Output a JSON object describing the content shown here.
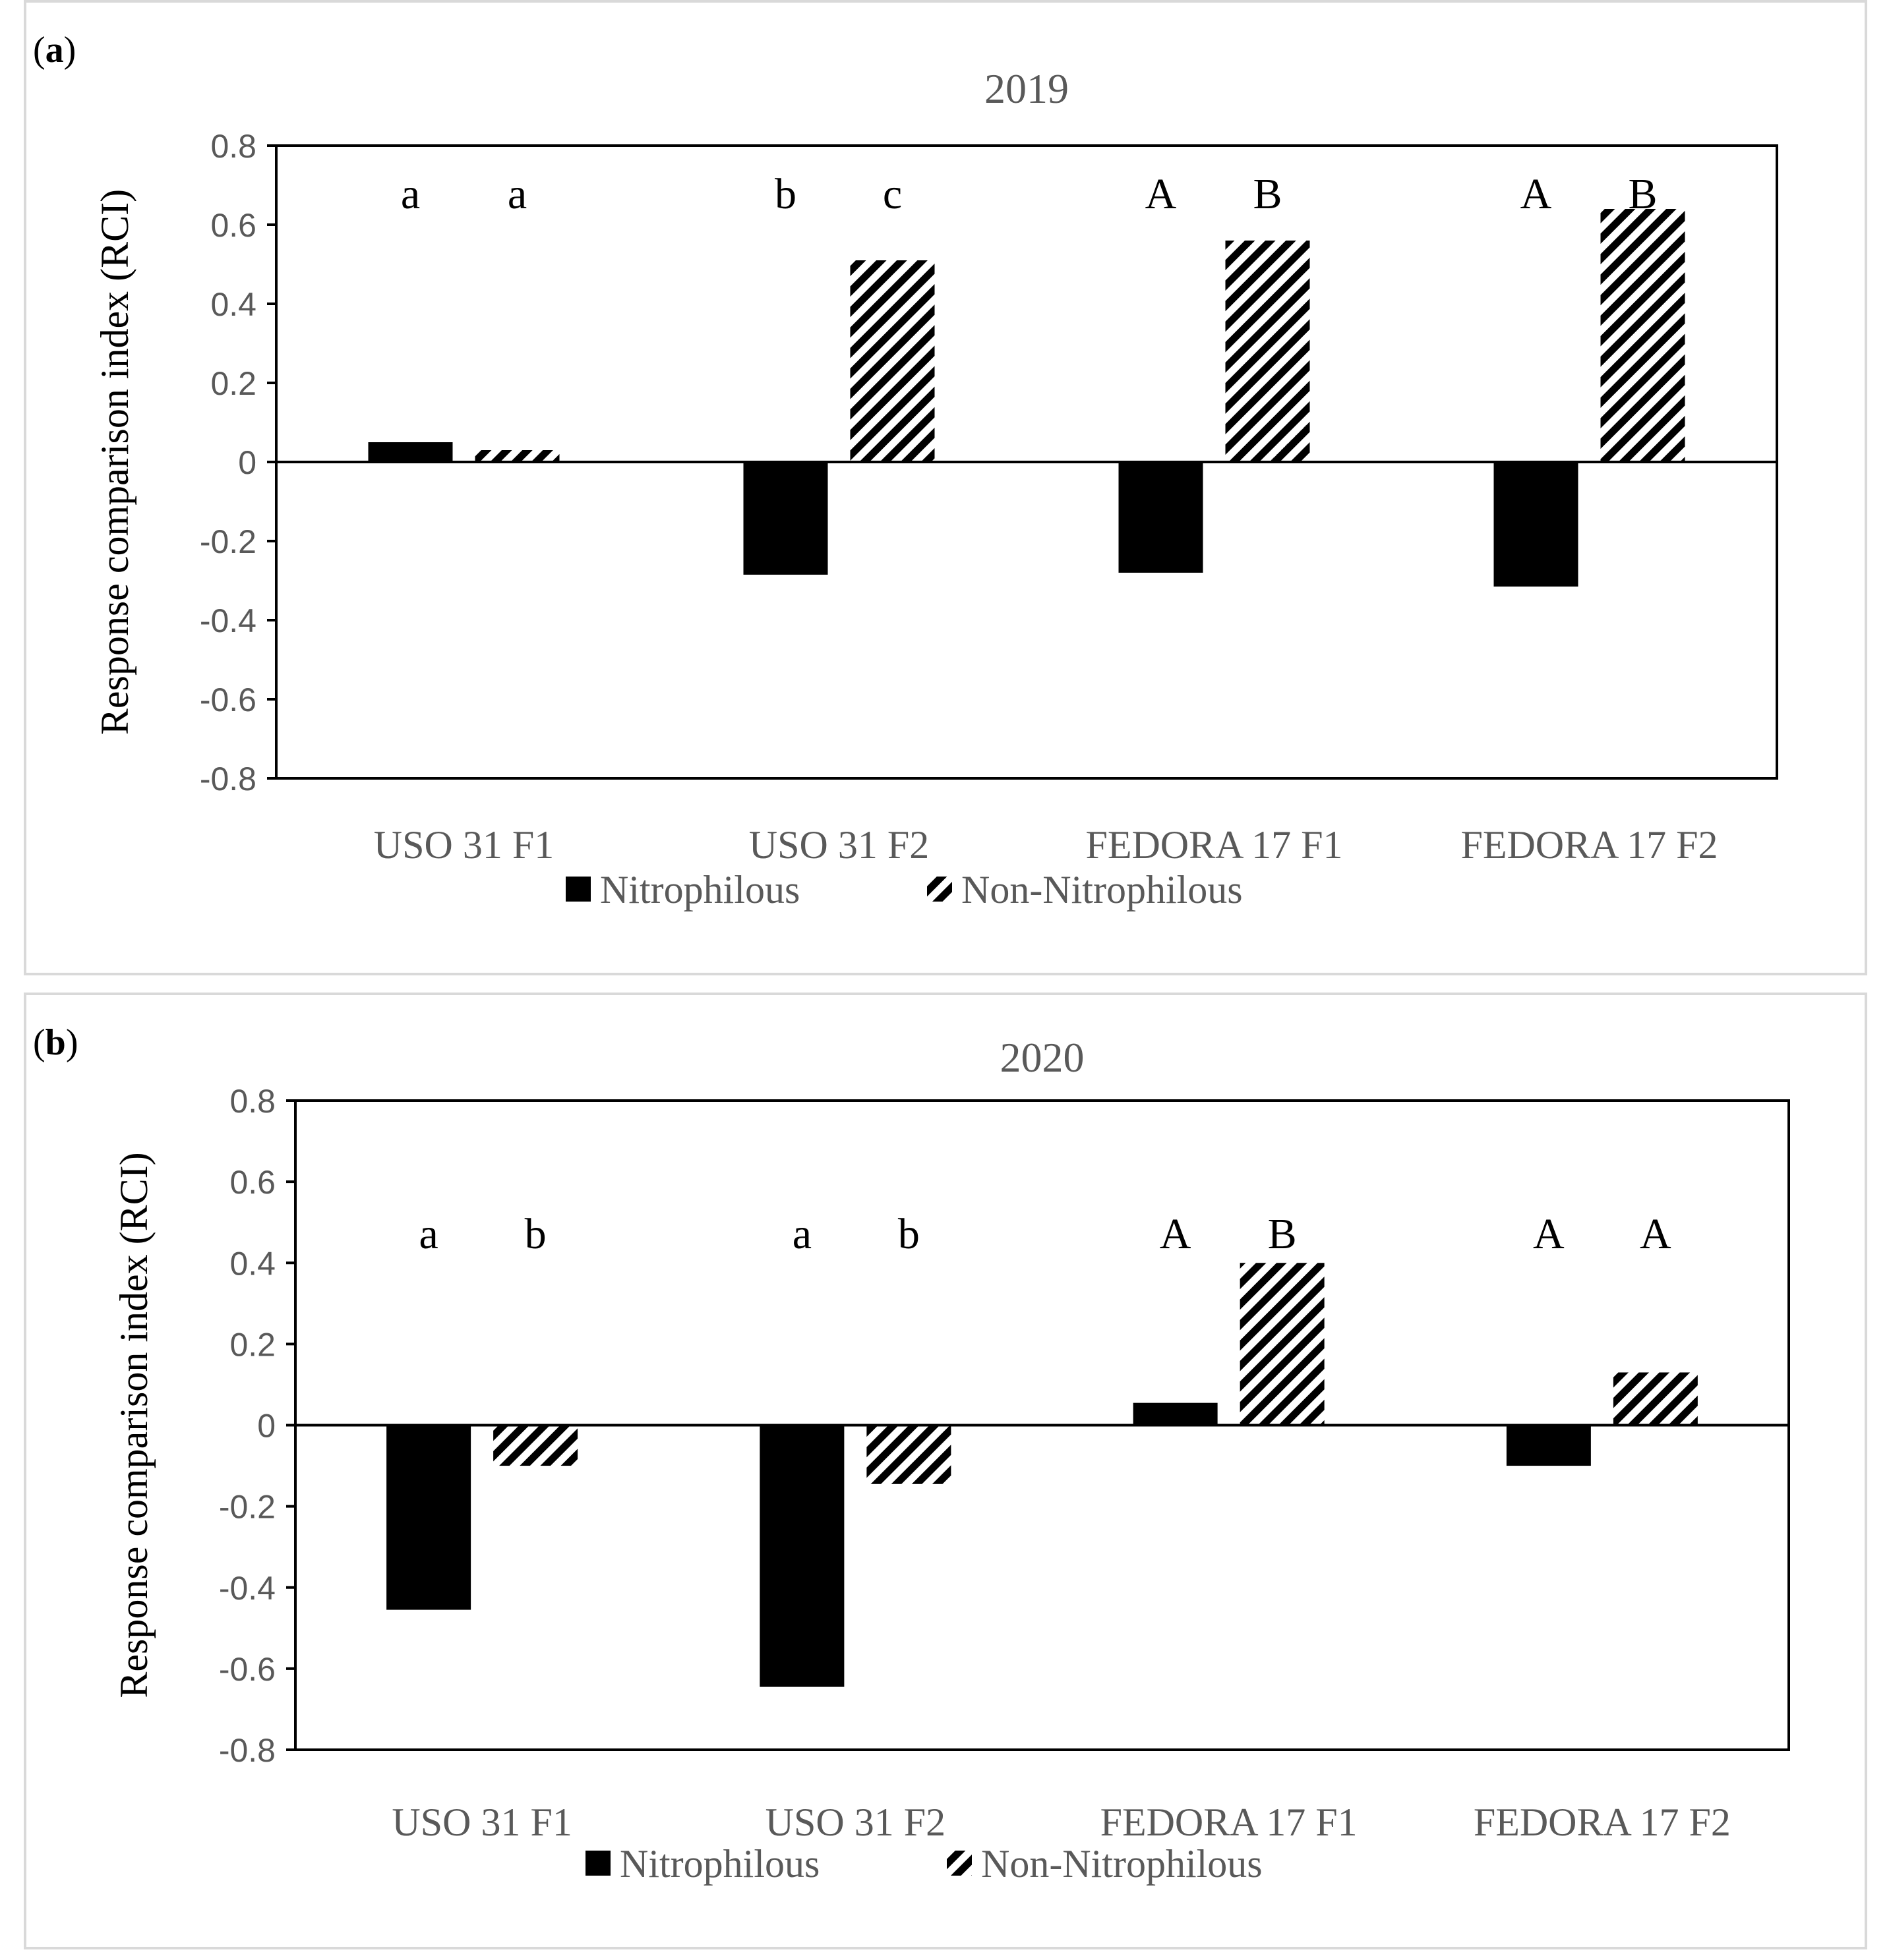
{
  "colors": {
    "nitrophilous": "#000000",
    "non_nitrophilous_hatch": "#000000",
    "axis": "#000000",
    "text_gray": "#595959",
    "frame": "#d9d9d9"
  },
  "chart_data": [
    {
      "panel_label": "a",
      "type": "bar",
      "title": "2019",
      "ylabel": "Response comparison index (RCI)",
      "xlabel": "",
      "ylim": [
        -0.8,
        0.8
      ],
      "yticks": [
        "0.8",
        "0.6",
        "0.4",
        "0.2",
        "0",
        "-0.2",
        "-0.4",
        "-0.6",
        "-0.8"
      ],
      "categories": [
        "USO 31 F1",
        "USO 31 F2",
        "FEDORA 17 F1",
        "FEDORA 17 F2"
      ],
      "series": [
        {
          "name": "Nitrophilous",
          "values": [
            0.05,
            -0.285,
            -0.28,
            -0.315
          ],
          "letters": [
            "a",
            "b",
            "A",
            "A"
          ]
        },
        {
          "name": "Non-Nitrophilous",
          "values": [
            0.03,
            0.51,
            0.56,
            0.64
          ],
          "letters": [
            "a",
            "c",
            "B",
            "B"
          ]
        }
      ],
      "legend": [
        "Nitrophilous",
        "Non-Nitrophilous"
      ],
      "legend_position": "bottom"
    },
    {
      "panel_label": "b",
      "type": "bar",
      "title": "2020",
      "ylabel": "Response comparison index (RCI)",
      "xlabel": "",
      "ylim": [
        -0.8,
        0.8
      ],
      "yticks": [
        "0.8",
        "0.6",
        "0.4",
        "0.2",
        "0",
        "-0.2",
        "-0.4",
        "-0.6",
        "-0.8"
      ],
      "categories": [
        "USO 31 F1",
        "USO 31 F2",
        "FEDORA 17 F1",
        "FEDORA 17 F2"
      ],
      "series": [
        {
          "name": "Nitrophilous",
          "values": [
            -0.455,
            -0.645,
            0.055,
            -0.1
          ],
          "letters": [
            "a",
            "a",
            "A",
            "A"
          ]
        },
        {
          "name": "Non-Nitrophilous",
          "values": [
            -0.1,
            -0.145,
            0.4,
            0.13
          ],
          "letters": [
            "b",
            "b",
            "B",
            "A"
          ]
        }
      ],
      "legend": [
        "Nitrophilous",
        "Non-Nitrophilous"
      ],
      "legend_position": "bottom"
    }
  ]
}
